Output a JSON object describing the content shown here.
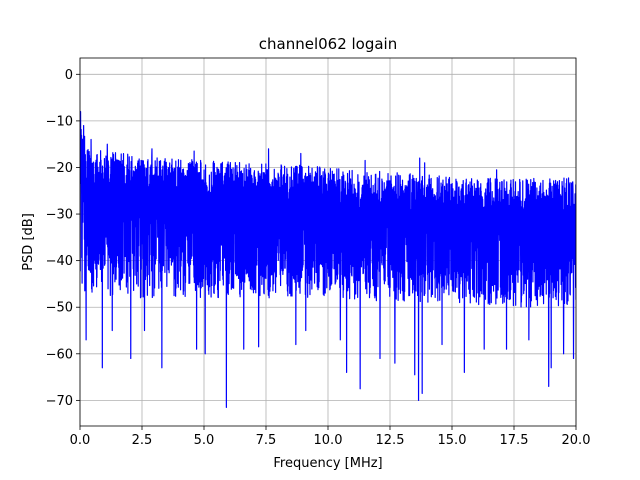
{
  "chart_data": {
    "type": "line",
    "title": "channel062 logain",
    "xlabel": "Frequency [MHz]",
    "ylabel": "PSD [dB]",
    "xlim": [
      0,
      20
    ],
    "ylim": [
      -75.5,
      3.5
    ],
    "xticks": [
      0,
      2.5,
      5,
      7.5,
      10,
      12.5,
      15,
      17.5,
      20
    ],
    "xtick_labels": [
      "0.0",
      "2.5",
      "5.0",
      "7.5",
      "10.0",
      "12.5",
      "15.0",
      "17.5",
      "20.0"
    ],
    "yticks": [
      0,
      -10,
      -20,
      -30,
      -40,
      -50,
      -60,
      -70
    ],
    "ytick_labels": [
      "0",
      "−10",
      "−20",
      "−30",
      "−40",
      "−50",
      "−60",
      "−70"
    ],
    "grid": true,
    "series": [
      {
        "color": "#0000ff",
        "envelope": {
          "x": [
            0,
            0.1,
            0.3,
            1,
            2.5,
            5,
            7.5,
            10,
            12.5,
            15,
            17.5,
            20
          ],
          "upper": [
            -8,
            -12,
            -15,
            -16.5,
            -17.5,
            -18.5,
            -19,
            -20,
            -21,
            -22,
            -22.5,
            -22
          ],
          "lower": [
            -43,
            -47,
            -48,
            -48,
            -48,
            -48,
            -48,
            -48,
            -49,
            -49,
            -50,
            -50
          ]
        },
        "spikes_down": [
          [
            0.25,
            -57
          ],
          [
            0.9,
            -63
          ],
          [
            1.3,
            -55
          ],
          [
            2.05,
            -61
          ],
          [
            2.6,
            -55
          ],
          [
            3.3,
            -63
          ],
          [
            4.7,
            -59
          ],
          [
            5.05,
            -60
          ],
          [
            5.9,
            -71.5
          ],
          [
            6.6,
            -59
          ],
          [
            7.2,
            -58.5
          ],
          [
            7.6,
            -63
          ],
          [
            8.7,
            -58
          ],
          [
            9.1,
            -55
          ],
          [
            10.5,
            -57
          ],
          [
            10.75,
            -64
          ],
          [
            11.3,
            -67.5
          ],
          [
            12.1,
            -61
          ],
          [
            12.7,
            -62
          ],
          [
            13.5,
            -64.5
          ],
          [
            13.65,
            -70
          ],
          [
            13.8,
            -68.5
          ],
          [
            14.6,
            -58
          ],
          [
            15.5,
            -64
          ],
          [
            16.3,
            -59
          ],
          [
            17.2,
            -59
          ],
          [
            18.1,
            -57
          ],
          [
            18.9,
            -67
          ],
          [
            19.0,
            -63
          ],
          [
            19.5,
            -60
          ],
          [
            19.9,
            -61
          ]
        ],
        "spikes_up": [
          [
            0.02,
            -8
          ],
          [
            0.15,
            -11
          ],
          [
            0.45,
            -14
          ],
          [
            1.1,
            -15
          ],
          [
            2.9,
            -16
          ],
          [
            4.6,
            -16.5
          ],
          [
            7.6,
            -16
          ],
          [
            8.9,
            -17
          ],
          [
            11.5,
            -18.5
          ],
          [
            13.7,
            -18
          ],
          [
            13.9,
            -19
          ],
          [
            16.8,
            -20.5
          ]
        ],
        "n_points": 2600
      }
    ]
  }
}
